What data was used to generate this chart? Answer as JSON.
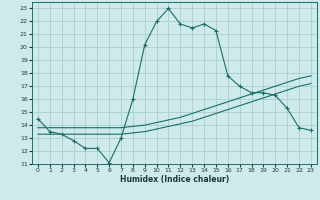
{
  "xlabel": "Humidex (Indice chaleur)",
  "ylabel": "",
  "bg_color": "#ceeaea",
  "grid_color": "#aacece",
  "line_color": "#1a6e6a",
  "xlim": [
    -0.5,
    23.5
  ],
  "ylim": [
    11,
    23.5
  ],
  "yticks": [
    11,
    12,
    13,
    14,
    15,
    16,
    17,
    18,
    19,
    20,
    21,
    22,
    23
  ],
  "xticks": [
    0,
    1,
    2,
    3,
    4,
    5,
    6,
    7,
    8,
    9,
    10,
    11,
    12,
    13,
    14,
    15,
    16,
    17,
    18,
    19,
    20,
    21,
    22,
    23
  ],
  "series1_x": [
    0,
    1,
    2,
    3,
    4,
    5,
    6,
    7,
    8,
    9,
    10,
    11,
    12,
    13,
    14,
    15,
    16,
    17,
    18,
    19,
    20,
    21,
    22,
    23
  ],
  "series1_y": [
    14.5,
    13.5,
    13.3,
    12.8,
    12.2,
    12.2,
    11.1,
    13.0,
    16.0,
    20.2,
    22.0,
    23.0,
    21.8,
    21.5,
    21.8,
    21.3,
    17.8,
    17.0,
    16.5,
    16.5,
    16.3,
    15.3,
    13.8,
    13.6
  ],
  "series2_x": [
    0,
    1,
    2,
    3,
    4,
    5,
    6,
    7,
    8,
    9,
    10,
    11,
    12,
    13,
    14,
    15,
    16,
    17,
    18,
    19,
    20,
    21,
    22,
    23
  ],
  "series2_y": [
    13.3,
    13.3,
    13.3,
    13.3,
    13.3,
    13.3,
    13.3,
    13.3,
    13.4,
    13.5,
    13.7,
    13.9,
    14.1,
    14.3,
    14.6,
    14.9,
    15.2,
    15.5,
    15.8,
    16.1,
    16.4,
    16.7,
    17.0,
    17.2
  ],
  "series3_x": [
    0,
    1,
    2,
    3,
    4,
    5,
    6,
    7,
    8,
    9,
    10,
    11,
    12,
    13,
    14,
    15,
    16,
    17,
    18,
    19,
    20,
    21,
    22,
    23
  ],
  "series3_y": [
    13.8,
    13.8,
    13.8,
    13.8,
    13.8,
    13.8,
    13.8,
    13.8,
    13.9,
    14.0,
    14.2,
    14.4,
    14.6,
    14.9,
    15.2,
    15.5,
    15.8,
    16.1,
    16.4,
    16.7,
    17.0,
    17.3,
    17.6,
    17.8
  ]
}
